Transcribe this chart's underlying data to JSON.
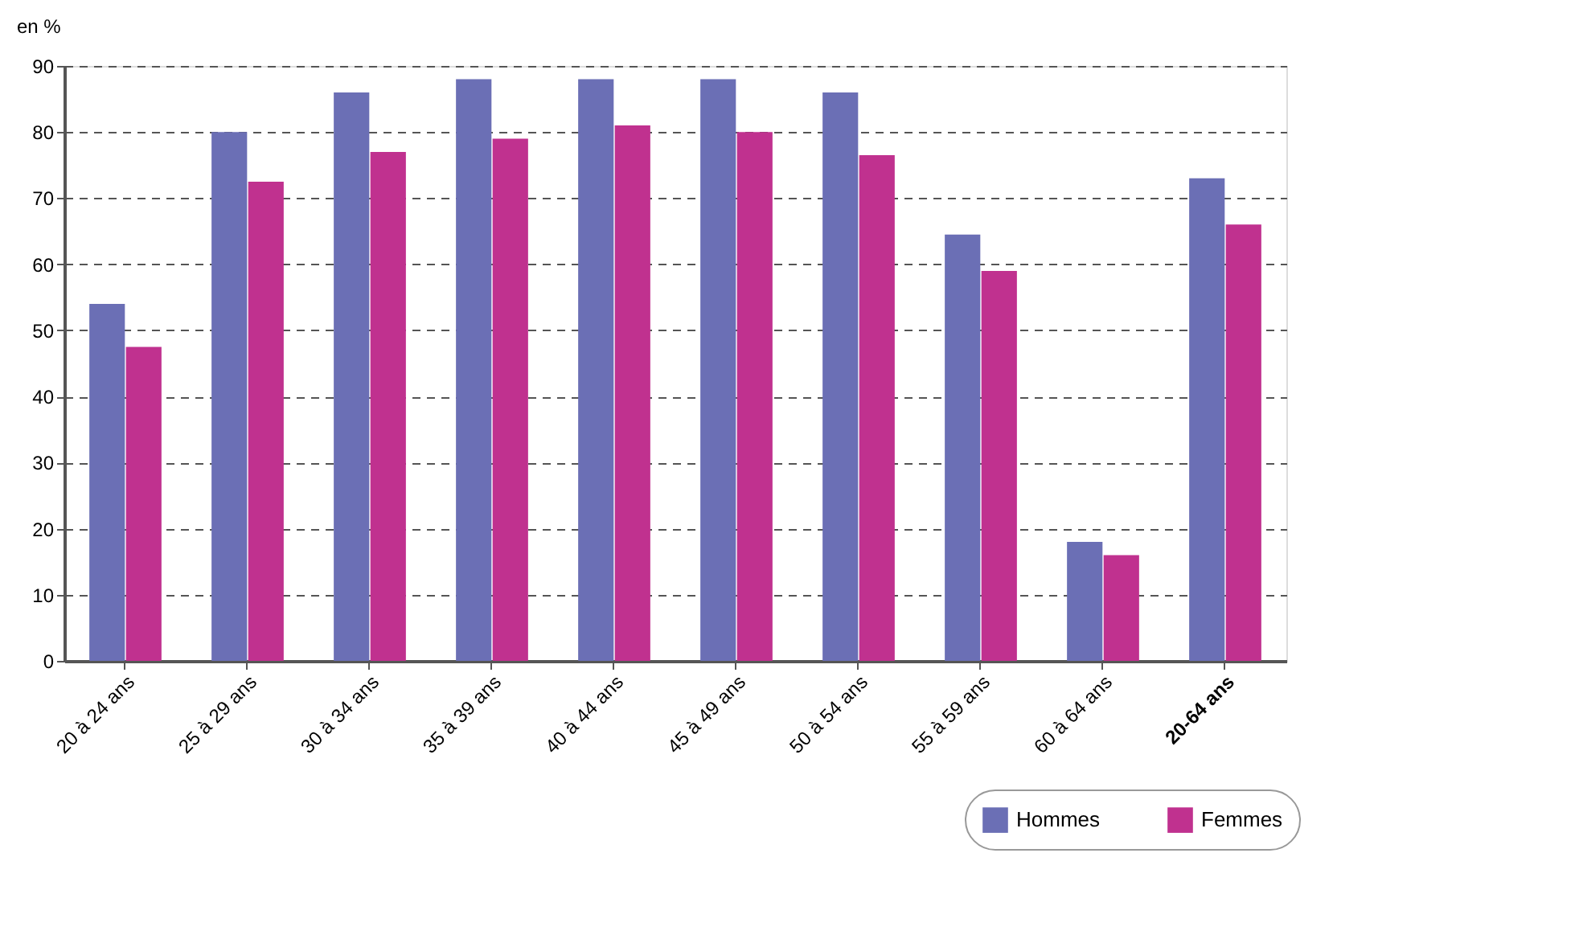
{
  "chart_data": {
    "type": "bar",
    "ylabel": "en %",
    "categories": [
      "20 à 24 ans",
      "25 à 29 ans",
      "30 à 34 ans",
      "35 à 39 ans",
      "40 à 44 ans",
      "45 à 49 ans",
      "50 à 54 ans",
      "55 à 59 ans",
      "60 à 64 ans",
      "20-64 ans"
    ],
    "series": [
      {
        "name": "Hommes",
        "color": "#6b6fb5",
        "values": [
          54,
          80,
          86,
          88,
          88,
          88,
          86,
          64.5,
          18,
          73
        ]
      },
      {
        "name": "Femmes",
        "color": "#c0318f",
        "values": [
          47.5,
          72.5,
          77,
          79,
          81,
          80,
          76.5,
          59,
          16,
          66
        ]
      }
    ],
    "ylim": [
      0,
      90
    ],
    "yticks": [
      0,
      10,
      20,
      30,
      40,
      50,
      60,
      70,
      80,
      90
    ],
    "grid": "y",
    "legend": "bottom right"
  }
}
